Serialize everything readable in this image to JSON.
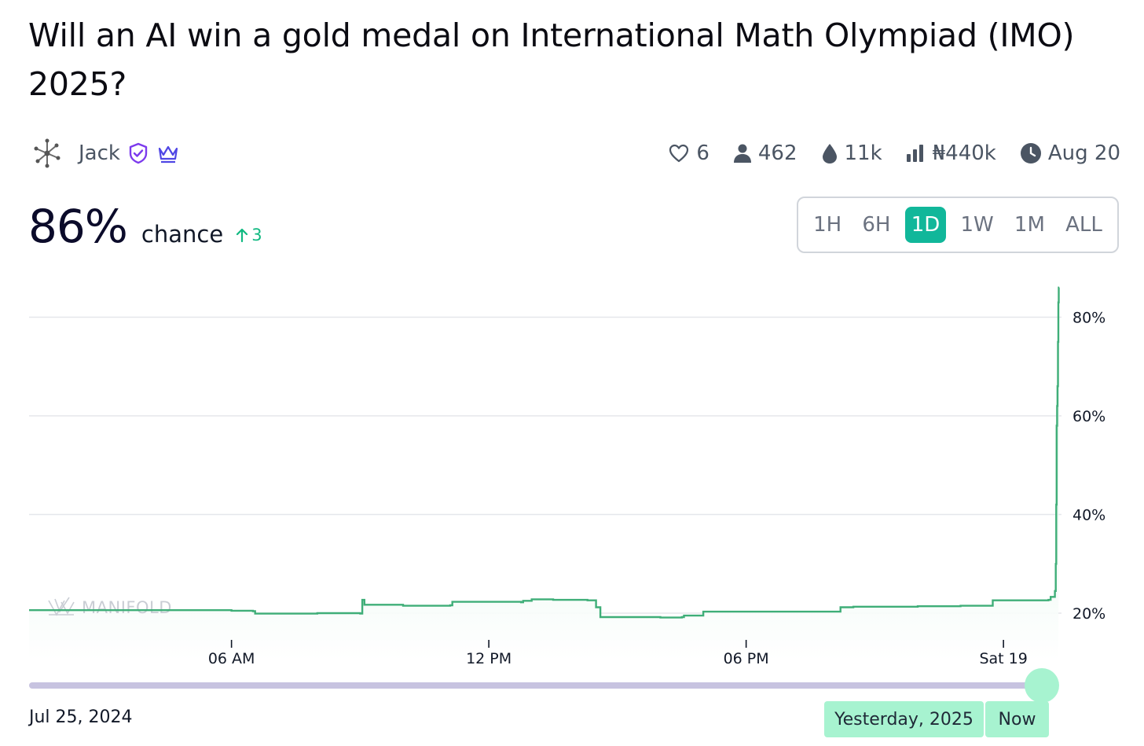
{
  "market": {
    "title": "Will an AI win a gold medal on International Math Olympiad (IMO) 2025?",
    "author": "Jack"
  },
  "stats": {
    "likes": "6",
    "traders": "462",
    "liquidity": "11k",
    "volume": "₦440k",
    "close_date": "Aug 20"
  },
  "probability": {
    "value": "86%",
    "label": "chance",
    "change": "3",
    "change_direction": "up"
  },
  "time_periods": [
    "1H",
    "6H",
    "1D",
    "1W",
    "1M",
    "ALL"
  ],
  "active_period": "1D",
  "watermark": "MANIFOLD",
  "range_start_label": "Jul 25, 2024",
  "range_end_labels": [
    "Yesterday, 2025",
    "Now"
  ],
  "colors": {
    "accent": "#11b79a",
    "line": "#3fae78",
    "fill": "#d9f3e5",
    "slider_track": "#c7c3e0",
    "slider_handle": "#a7f3d0",
    "badge_purple": "#7c3aed",
    "change_up": "#11b981"
  },
  "icons": [
    "heart-icon",
    "person-icon",
    "droplet-icon",
    "bar-chart-icon",
    "clock-icon",
    "shield-check-icon",
    "crown-icon",
    "arrow-up-icon",
    "manifold-logo-icon"
  ],
  "chart_data": {
    "type": "line",
    "step": true,
    "x_unit": "hours since midnight Jul 18, 2025",
    "x_ticks": [
      {
        "x": 6,
        "label": "06 AM"
      },
      {
        "x": 12,
        "label": "12 PM"
      },
      {
        "x": 18,
        "label": "06 PM"
      },
      {
        "x": 24,
        "label": "Sat 19"
      }
    ],
    "xlim": [
      1.28,
      25.28
    ],
    "y_ticks": [
      {
        "y": 20,
        "label": "20%"
      },
      {
        "y": 40,
        "label": "40%"
      },
      {
        "y": 60,
        "label": "60%"
      },
      {
        "y": 80,
        "label": "80%"
      }
    ],
    "ylim": [
      15,
      86
    ],
    "grid": true,
    "series": [
      {
        "points": [
          [
            1.28,
            20.6
          ],
          [
            6.0,
            20.5
          ],
          [
            6.5,
            20.4
          ],
          [
            6.55,
            19.9
          ],
          [
            8.0,
            20.0
          ],
          [
            9.0,
            19.9
          ],
          [
            9.05,
            22.7
          ],
          [
            9.1,
            21.7
          ],
          [
            10.0,
            21.5
          ],
          [
            11.1,
            21.6
          ],
          [
            11.15,
            22.3
          ],
          [
            12.0,
            22.3
          ],
          [
            12.75,
            22.2
          ],
          [
            12.8,
            22.5
          ],
          [
            13.0,
            22.8
          ],
          [
            13.5,
            22.7
          ],
          [
            14.3,
            22.6
          ],
          [
            14.5,
            21.2
          ],
          [
            14.6,
            19.2
          ],
          [
            16.0,
            19.1
          ],
          [
            16.5,
            19.2
          ],
          [
            16.55,
            19.5
          ],
          [
            17.0,
            19.6
          ],
          [
            17.0,
            20.3
          ],
          [
            20.0,
            20.3
          ],
          [
            20.2,
            21.2
          ],
          [
            20.5,
            21.3
          ],
          [
            22.0,
            21.4
          ],
          [
            23.0,
            21.5
          ],
          [
            23.7,
            21.5
          ],
          [
            23.75,
            22.6
          ],
          [
            24.5,
            22.6
          ],
          [
            25.05,
            22.7
          ],
          [
            25.1,
            23.3
          ],
          [
            25.2,
            24.5
          ],
          [
            25.22,
            30.0
          ],
          [
            25.23,
            42.0
          ],
          [
            25.24,
            58.0
          ],
          [
            25.25,
            62.0
          ],
          [
            25.26,
            66.0
          ],
          [
            25.27,
            75.0
          ],
          [
            25.28,
            83.0
          ],
          [
            25.29,
            86.0
          ],
          [
            25.3,
            86.0
          ]
        ]
      }
    ]
  }
}
